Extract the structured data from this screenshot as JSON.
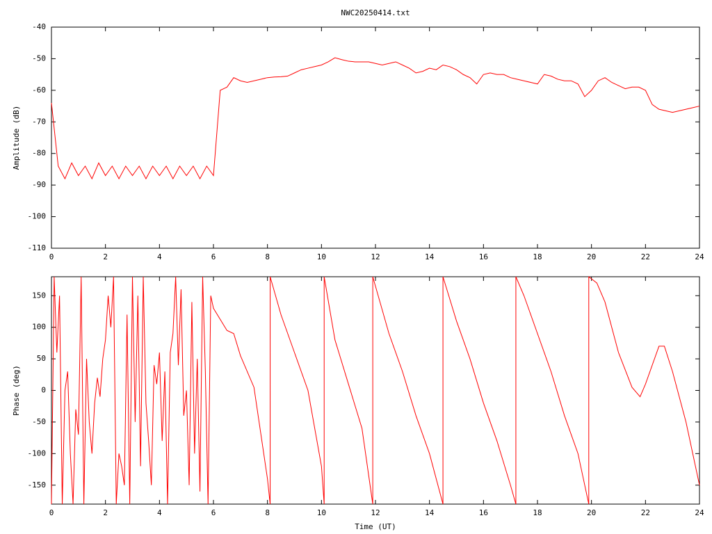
{
  "chart_data": [
    {
      "type": "line",
      "title": "NWC20250414.txt",
      "ylabel": "Amplitude (dB)",
      "xlim": [
        0,
        24
      ],
      "xticks": [
        0,
        2,
        4,
        6,
        8,
        10,
        12,
        14,
        16,
        18,
        20,
        22,
        24
      ],
      "ylim": [
        -110,
        -40
      ],
      "yticks": [
        -110,
        -100,
        -90,
        -80,
        -70,
        -60,
        -50,
        -40
      ],
      "series": [
        {
          "color": "#ff0000",
          "x": [
            0,
            0.25,
            0.5,
            0.75,
            1,
            1.25,
            1.5,
            1.75,
            2,
            2.25,
            2.5,
            2.75,
            3,
            3.25,
            3.5,
            3.75,
            4,
            4.25,
            4.5,
            4.75,
            5,
            5.25,
            5.5,
            5.75,
            6,
            6.25,
            6.5,
            6.75,
            7,
            7.25,
            7.5,
            7.75,
            8,
            8.25,
            8.5,
            8.75,
            9,
            9.25,
            9.5,
            9.75,
            10,
            10.25,
            10.5,
            10.75,
            11,
            11.25,
            11.5,
            11.75,
            12,
            12.25,
            12.5,
            12.75,
            13,
            13.25,
            13.5,
            13.75,
            14,
            14.25,
            14.5,
            14.75,
            15,
            15.25,
            15.5,
            15.75,
            16,
            16.25,
            16.5,
            16.75,
            17,
            17.25,
            17.5,
            17.75,
            18,
            18.25,
            18.5,
            18.75,
            19,
            19.25,
            19.5,
            19.75,
            20,
            20.25,
            20.5,
            20.75,
            21,
            21.25,
            21.5,
            21.75,
            22,
            22.25,
            22.5,
            22.75,
            23,
            23.25,
            23.5,
            23.75,
            24
          ],
          "values": [
            -64,
            -84,
            -88,
            -83,
            -87,
            -84,
            -88,
            -83,
            -87,
            -84,
            -88,
            -84,
            -87,
            -84,
            -88,
            -84,
            -87,
            -84,
            -88,
            -84,
            -87,
            -84,
            -88,
            -84,
            -87,
            -60,
            -59,
            -56,
            -57,
            -57.5,
            -57,
            -56.5,
            -56,
            -55.8,
            -55.7,
            -55.5,
            -54.5,
            -53.5,
            -53,
            -52.5,
            -52,
            -51,
            -49.7,
            -50.3,
            -50.8,
            -51,
            -51,
            -51,
            -51.5,
            -52,
            -51.5,
            -51,
            -52,
            -53,
            -54.5,
            -54,
            -53,
            -53.5,
            -52,
            -52.5,
            -53.5,
            -55,
            -56,
            -58,
            -55,
            -54.5,
            -55,
            -55,
            -56,
            -56.5,
            -57,
            -57.5,
            -58,
            -55,
            -55.5,
            -56.5,
            -57,
            -57,
            -58,
            -62,
            -60,
            -57,
            -56,
            -57.5,
            -58.5,
            -59.5,
            -59,
            -59,
            -60,
            -64.5,
            -66,
            -66.5,
            -67,
            -66.5,
            -66,
            -65.5,
            -65
          ]
        }
      ]
    },
    {
      "type": "line",
      "ylabel": "Phase (deg)",
      "xlabel": "Time (UT)",
      "xlim": [
        0,
        24
      ],
      "xticks": [
        0,
        2,
        4,
        6,
        8,
        10,
        12,
        14,
        16,
        18,
        20,
        22,
        24
      ],
      "ylim": [
        -180,
        180
      ],
      "yticks": [
        -150,
        -100,
        -50,
        0,
        50,
        100,
        150
      ],
      "series": [
        {
          "color": "#ff0000",
          "x": [
            0,
            0.1,
            0.2,
            0.3,
            0.4,
            0.5,
            0.6,
            0.7,
            0.8,
            0.9,
            1,
            1.1,
            1.2,
            1.3,
            1.4,
            1.5,
            1.6,
            1.7,
            1.8,
            1.9,
            2,
            2.1,
            2.2,
            2.3,
            2.4,
            2.5,
            2.6,
            2.7,
            2.8,
            2.9,
            3,
            3.1,
            3.2,
            3.3,
            3.4,
            3.5,
            3.6,
            3.7,
            3.8,
            3.9,
            4,
            4.1,
            4.2,
            4.3,
            4.4,
            4.5,
            4.6,
            4.7,
            4.8,
            4.9,
            5,
            5.1,
            5.2,
            5.3,
            5.4,
            5.5,
            5.6,
            5.7,
            5.8,
            5.9,
            6,
            6.5,
            6.75,
            7,
            7.5,
            8,
            8.1,
            8.1,
            8.5,
            9,
            9.5,
            10,
            10.1,
            10.1,
            10.5,
            11,
            11.5,
            11.9,
            11.9,
            12.5,
            13,
            13.5,
            14,
            14.5,
            14.5,
            15,
            15.5,
            16,
            16.5,
            17,
            17.2,
            17.2,
            17.5,
            18,
            18.5,
            19,
            19.5,
            19.9,
            19.9,
            20.2,
            20.5,
            21,
            21.5,
            21.8,
            22,
            22.5,
            22.7,
            23,
            23.5,
            24
          ],
          "values": [
            -180,
            180,
            60,
            150,
            -180,
            0,
            30,
            -100,
            -180,
            -30,
            -70,
            180,
            -180,
            50,
            -50,
            -100,
            -20,
            20,
            -10,
            50,
            80,
            150,
            100,
            180,
            -180,
            -100,
            -120,
            -150,
            120,
            -180,
            180,
            -50,
            150,
            -120,
            180,
            -20,
            -80,
            -150,
            40,
            10,
            60,
            -80,
            30,
            -180,
            60,
            90,
            180,
            40,
            160,
            -40,
            0,
            -150,
            140,
            -100,
            50,
            -160,
            180,
            30,
            -180,
            150,
            130,
            95,
            90,
            55,
            5,
            -140,
            -180,
            180,
            120,
            60,
            0,
            -120,
            -180,
            180,
            80,
            10,
            -60,
            -180,
            180,
            90,
            30,
            -40,
            -100,
            -180,
            180,
            110,
            50,
            -20,
            -80,
            -150,
            -180,
            180,
            150,
            90,
            30,
            -40,
            -100,
            -180,
            180,
            170,
            140,
            60,
            5,
            -10,
            10,
            70,
            70,
            30,
            -50,
            -150
          ]
        }
      ]
    }
  ]
}
